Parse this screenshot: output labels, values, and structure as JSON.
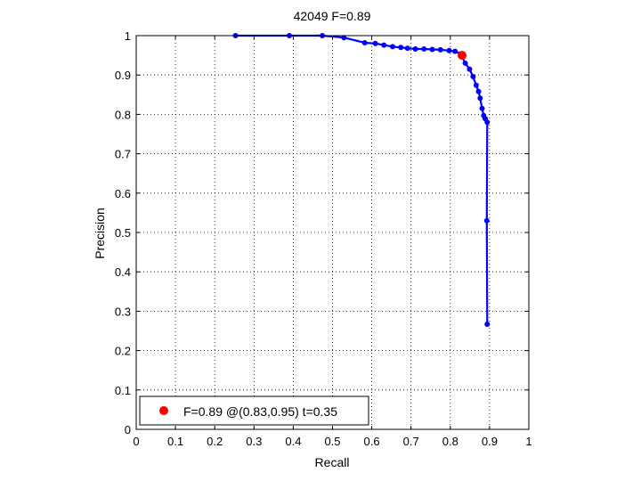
{
  "chart_data": {
    "type": "line",
    "title": "42049 F=0.89",
    "xlabel": "Recall",
    "ylabel": "Precision",
    "xlim": [
      0,
      1
    ],
    "ylim": [
      0,
      1
    ],
    "xticks": [
      "0",
      "0.1",
      "0.2",
      "0.3",
      "0.4",
      "0.5",
      "0.6",
      "0.7",
      "0.8",
      "0.9",
      "1"
    ],
    "yticks": [
      "0",
      "0.1",
      "0.2",
      "0.3",
      "0.4",
      "0.5",
      "0.6",
      "0.7",
      "0.8",
      "0.9",
      "1"
    ],
    "grid": true,
    "series": [
      {
        "color": "#0000ff",
        "points": [
          [
            0.253,
            1.0
          ],
          [
            0.39,
            1.0
          ],
          [
            0.474,
            1.0
          ],
          [
            0.529,
            0.995
          ],
          [
            0.582,
            0.982
          ],
          [
            0.609,
            0.98
          ],
          [
            0.631,
            0.976
          ],
          [
            0.653,
            0.972
          ],
          [
            0.674,
            0.97
          ],
          [
            0.691,
            0.968
          ],
          [
            0.711,
            0.966
          ],
          [
            0.733,
            0.966
          ],
          [
            0.754,
            0.965
          ],
          [
            0.775,
            0.964
          ],
          [
            0.797,
            0.962
          ],
          [
            0.812,
            0.96
          ],
          [
            0.826,
            0.954
          ],
          [
            0.838,
            0.93
          ],
          [
            0.849,
            0.915
          ],
          [
            0.858,
            0.896
          ],
          [
            0.866,
            0.874
          ],
          [
            0.872,
            0.858
          ],
          [
            0.876,
            0.841
          ],
          [
            0.881,
            0.815
          ],
          [
            0.885,
            0.797
          ],
          [
            0.889,
            0.789
          ],
          [
            0.894,
            0.78
          ],
          [
            0.893,
            0.53
          ],
          [
            0.894,
            0.267
          ]
        ]
      }
    ],
    "highlight": {
      "x": 0.83,
      "y": 0.95,
      "color": "#ff0000"
    },
    "legend": {
      "label": "F=0.89 @(0.83,0.95) t=0.35",
      "position": "bottom-left"
    }
  }
}
